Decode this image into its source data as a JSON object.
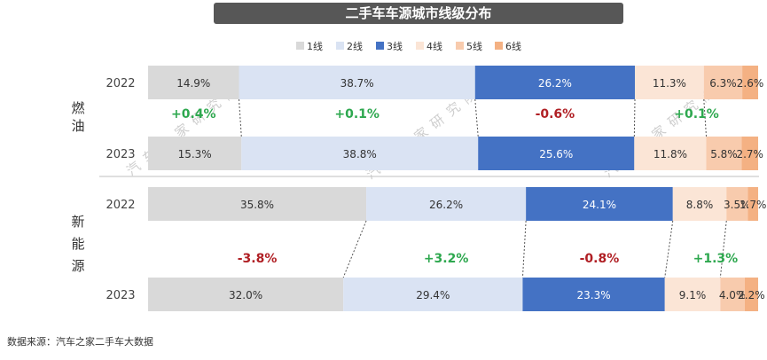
{
  "title": "二手车车源城市线级分布",
  "source": "数据来源：汽车之家二手车大数据",
  "watermark": "汽车之家研究院",
  "colors": {
    "1线": "#d9d9d9",
    "2线": "#dae3f3",
    "3线": "#4472c4",
    "4线": "#fbe5d6",
    "5线": "#f8cbad",
    "6线": "#f4b183",
    "positive": "#2ea84f",
    "negative": "#b01f24"
  },
  "chart_data": {
    "type": "bar",
    "orientation": "horizontal-stacked-100",
    "categories_legend": [
      "1线",
      "2线",
      "3线",
      "4线",
      "5线",
      "6线"
    ],
    "groups": [
      {
        "name": "燃油",
        "rows": [
          {
            "year": "2022",
            "values": [
              14.9,
              38.7,
              26.2,
              11.3,
              6.3,
              2.6
            ],
            "labels": [
              "14.9%",
              "38.7%",
              "26.2%",
              "11.3%",
              "6.3%",
              "2.6%"
            ]
          },
          {
            "year": "2023",
            "values": [
              15.3,
              38.8,
              25.6,
              11.8,
              5.8,
              2.7
            ],
            "labels": [
              "15.3%",
              "38.8%",
              "25.6%",
              "11.8%",
              "5.8%",
              "2.7%"
            ]
          }
        ],
        "changes": [
          "+0.4%",
          "+0.1%",
          "-0.6%",
          "+0.1%"
        ]
      },
      {
        "name": "新能源",
        "rows": [
          {
            "year": "2022",
            "values": [
              35.8,
              26.2,
              24.1,
              8.8,
              3.5,
              1.7
            ],
            "labels": [
              "35.8%",
              "26.2%",
              "24.1%",
              "8.8%",
              "3.5%",
              "1.7%"
            ]
          },
          {
            "year": "2023",
            "values": [
              32.0,
              29.4,
              23.3,
              9.1,
              4.0,
              2.2
            ],
            "labels": [
              "32.0%",
              "29.4%",
              "23.3%",
              "9.1%",
              "4.0%",
              "2.2%"
            ]
          }
        ],
        "changes": [
          "-3.8%",
          "+3.2%",
          "-0.8%",
          "+1.3%"
        ]
      }
    ]
  }
}
